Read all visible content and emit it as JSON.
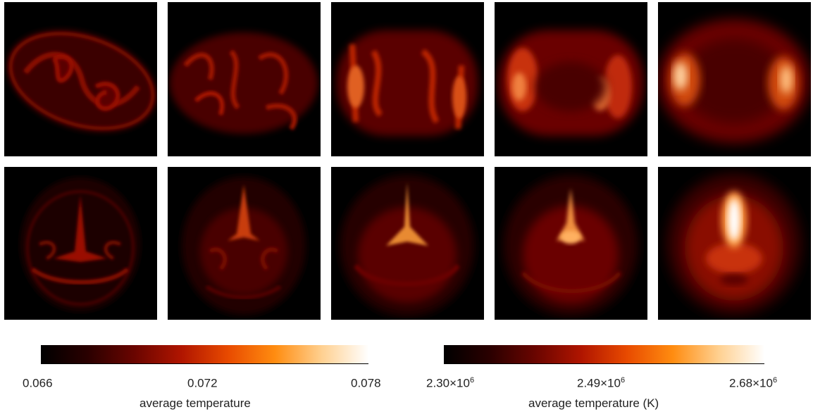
{
  "figure": {
    "rows": 2,
    "columns": 5,
    "colormap": [
      "#000000",
      "#2a0000",
      "#6a0500",
      "#b01500",
      "#e84a00",
      "#ff8c10",
      "#ffd090",
      "#ffffff"
    ]
  },
  "colorbars": [
    {
      "ticks": [
        {
          "base": "0.066",
          "exp": ""
        },
        {
          "base": "0.072",
          "exp": ""
        },
        {
          "base": "0.078",
          "exp": ""
        }
      ],
      "label": "average temperature"
    },
    {
      "ticks": [
        {
          "base": "2.30×10",
          "exp": "6"
        },
        {
          "base": "2.49×10",
          "exp": "6"
        },
        {
          "base": "2.68×10",
          "exp": "6"
        }
      ],
      "label": "average temperature (K)"
    }
  ]
}
